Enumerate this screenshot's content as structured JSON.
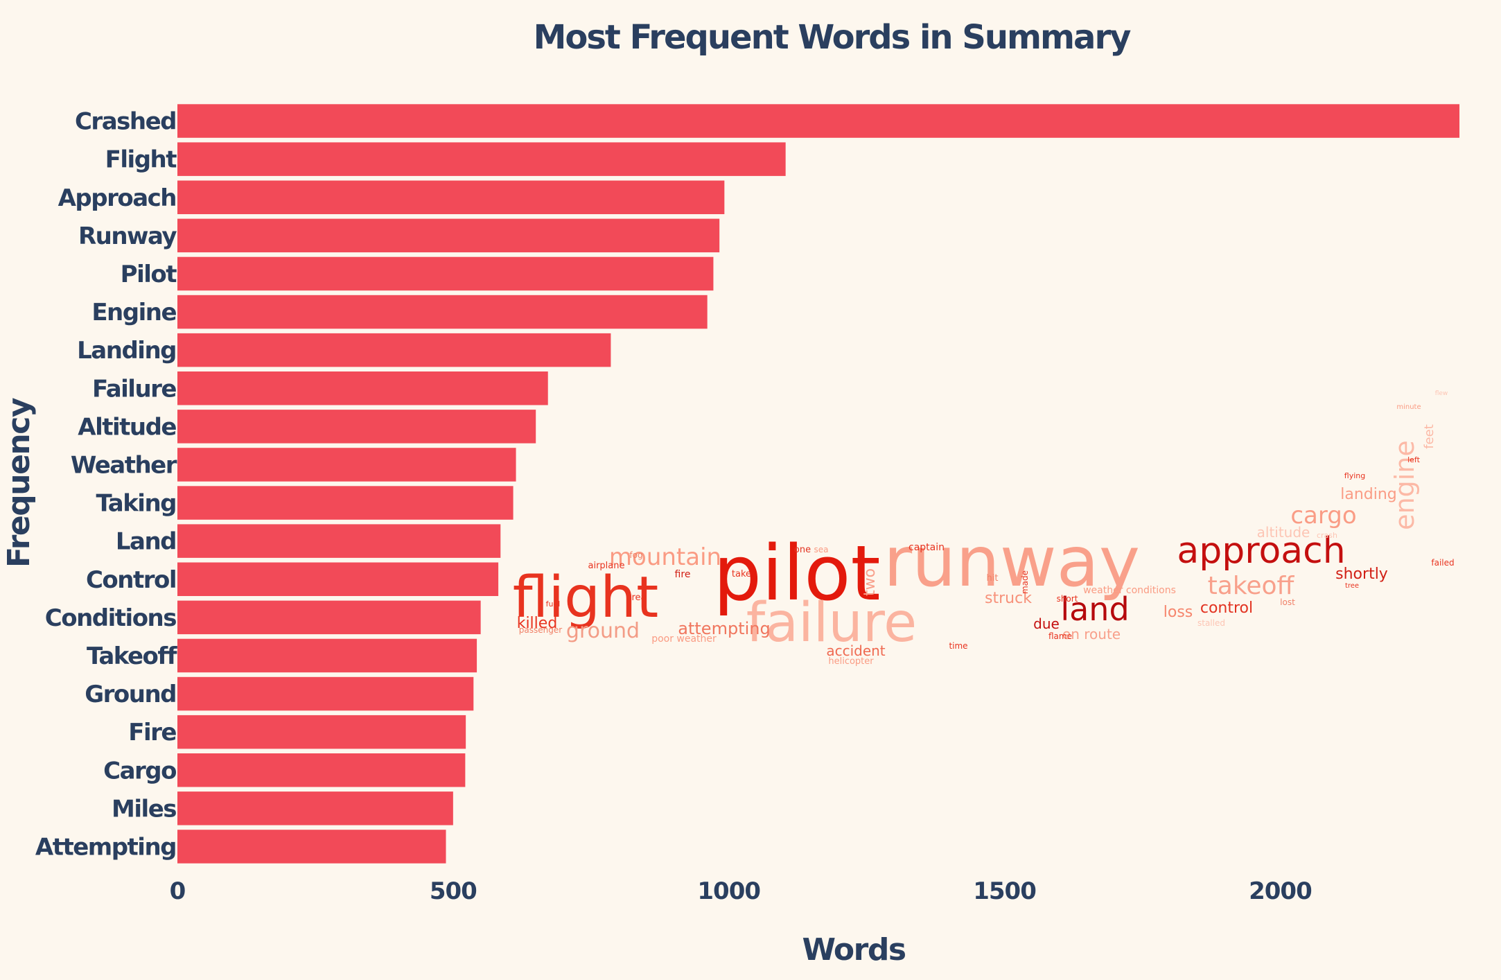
{
  "chart_data": {
    "type": "bar",
    "orientation": "horizontal",
    "title": "Most Frequent Words in Summary",
    "xlabel": "Words",
    "ylabel": "Frequency",
    "xlim": [
      0,
      2330
    ],
    "xticks": [
      0,
      500,
      1000,
      1500,
      2000
    ],
    "bar_color": "#f24a58",
    "categories": [
      "Crashed",
      "Flight",
      "Approach",
      "Runway",
      "Pilot",
      "Engine",
      "Landing",
      "Failure",
      "Altitude",
      "Weather",
      "Taking",
      "Land",
      "Control",
      "Conditions",
      "Takeoff",
      "Ground",
      "Fire",
      "Cargo",
      "Miles",
      "Attempting"
    ],
    "values": [
      2325,
      1103,
      992,
      983,
      972,
      961,
      786,
      672,
      650,
      614,
      609,
      586,
      582,
      550,
      543,
      537,
      523,
      522,
      500,
      487
    ],
    "grid": false,
    "legend": "none"
  },
  "wordcloud": {
    "shape": "airplane",
    "words": [
      {
        "text": "pilot",
        "weight": 1.0,
        "color": "#e31a0c"
      },
      {
        "text": "runway",
        "weight": 0.95,
        "color": "#f9a08a"
      },
      {
        "text": "flight",
        "weight": 0.85,
        "color": "#e8331f"
      },
      {
        "text": "failure",
        "weight": 0.75,
        "color": "#fbb4a0"
      },
      {
        "text": "approach",
        "weight": 0.55,
        "color": "#c40f0f"
      },
      {
        "text": "land",
        "weight": 0.45,
        "color": "#b5090d"
      },
      {
        "text": "mountain",
        "weight": 0.38,
        "color": "#fa9b83"
      },
      {
        "text": "takeoff",
        "weight": 0.38,
        "color": "#f8a08b"
      },
      {
        "text": "cargo",
        "weight": 0.36,
        "color": "#fa9c85"
      },
      {
        "text": "engine",
        "weight": 0.38,
        "color": "#fcb9a6"
      },
      {
        "text": "ground",
        "weight": 0.3,
        "color": "#f39c86"
      },
      {
        "text": "attempting",
        "weight": 0.26,
        "color": "#f0765e"
      },
      {
        "text": "struck",
        "weight": 0.25,
        "color": "#f7917a"
      },
      {
        "text": "control",
        "weight": 0.25,
        "color": "#e23220"
      },
      {
        "text": "loss",
        "weight": 0.24,
        "color": "#f6866d"
      },
      {
        "text": "shortly",
        "weight": 0.24,
        "color": "#d11f14"
      },
      {
        "text": "landing",
        "weight": 0.2,
        "color": "#fa9c85"
      },
      {
        "text": "altitude",
        "weight": 0.2,
        "color": "#fdc5b4"
      },
      {
        "text": "killed",
        "weight": 0.22,
        "color": "#e8331f"
      },
      {
        "text": "accident",
        "weight": 0.21,
        "color": "#ef6a51"
      },
      {
        "text": "en route",
        "weight": 0.2,
        "color": "#f8a08b"
      },
      {
        "text": "due",
        "weight": 0.2,
        "color": "#c40f0f"
      },
      {
        "text": "two",
        "weight": 0.2,
        "color": "#f8a08b"
      },
      {
        "text": "feet",
        "weight": 0.18,
        "color": "#fcb9a6"
      },
      {
        "text": "fog",
        "weight": 0.13,
        "color": "#f08067"
      },
      {
        "text": "airplane",
        "weight": 0.13,
        "color": "#e8331f"
      },
      {
        "text": "fire",
        "weight": 0.14,
        "color": "#d11f14"
      },
      {
        "text": "take",
        "weight": 0.13,
        "color": "#e8331f"
      },
      {
        "text": "one",
        "weight": 0.13,
        "color": "#e23220"
      },
      {
        "text": "sea",
        "weight": 0.12,
        "color": "#fa9b83"
      },
      {
        "text": "captain",
        "weight": 0.14,
        "color": "#e8331f"
      },
      {
        "text": "hit",
        "weight": 0.13,
        "color": "#f08067"
      },
      {
        "text": "made",
        "weight": 0.12,
        "color": "#e8331f"
      },
      {
        "text": "weather conditions",
        "weight": 0.14,
        "color": "#fa9b83"
      },
      {
        "text": "short",
        "weight": 0.12,
        "color": "#e8331f"
      },
      {
        "text": "lost",
        "weight": 0.12,
        "color": "#f08067"
      },
      {
        "text": "stalled",
        "weight": 0.12,
        "color": "#fdc5b4"
      },
      {
        "text": "flame",
        "weight": 0.12,
        "color": "#e8331f"
      },
      {
        "text": "time",
        "weight": 0.12,
        "color": "#e8331f"
      },
      {
        "text": "poor weather",
        "weight": 0.14,
        "color": "#fa9b83"
      },
      {
        "text": "helicopter",
        "weight": 0.13,
        "color": "#fa9b83"
      },
      {
        "text": "passenger",
        "weight": 0.12,
        "color": "#f08067"
      },
      {
        "text": "area",
        "weight": 0.13,
        "color": "#e8331f"
      },
      {
        "text": "fuel",
        "weight": 0.11,
        "color": "#e8331f"
      },
      {
        "text": "crash",
        "weight": 0.11,
        "color": "#fdc5b4"
      },
      {
        "text": "failed",
        "weight": 0.12,
        "color": "#e8331f"
      },
      {
        "text": "flying",
        "weight": 0.11,
        "color": "#e8331f"
      },
      {
        "text": "left",
        "weight": 0.11,
        "color": "#e8331f"
      },
      {
        "text": "minute",
        "weight": 0.1,
        "color": "#fa9b83"
      },
      {
        "text": "flew",
        "weight": 0.09,
        "color": "#fdc5b4"
      },
      {
        "text": "tree",
        "weight": 0.1,
        "color": "#e8331f"
      }
    ]
  }
}
